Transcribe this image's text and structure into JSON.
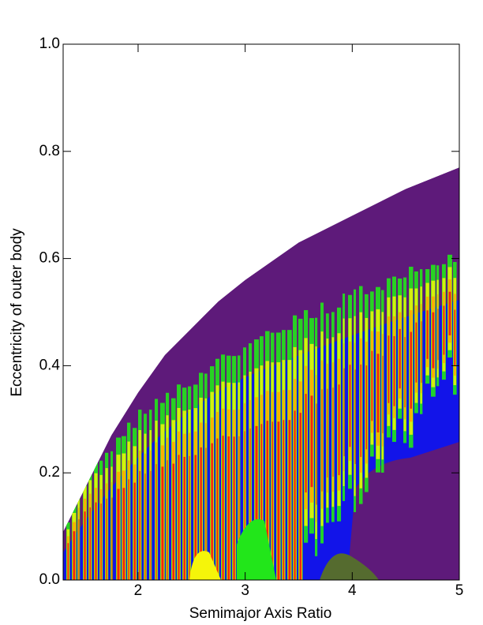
{
  "chart_data": {
    "type": "contour",
    "xlabel": "Semimajor Axis Ratio",
    "ylabel": "Eccentricity of outer body",
    "x": [
      1.3,
      1.5,
      1.75,
      2,
      2.25,
      2.5,
      2.75,
      3,
      3.5,
      4,
      4.5,
      5
    ],
    "values": [
      0.09,
      0.17,
      0.27,
      0.35,
      0.42,
      0.47,
      0.52,
      0.56,
      0.63,
      0.68,
      0.73,
      0.77
    ],
    "color": "#5e1a7a",
    "xlim": [
      1.3,
      5
    ],
    "ylim": [
      0,
      1
    ],
    "xticks": [
      2,
      3,
      4,
      5
    ],
    "yticks": [
      {
        "value": 0,
        "label": "0.0"
      },
      0.2,
      0.4,
      0.6,
      0.8,
      {
        "value": 1,
        "label": "1.0"
      }
    ]
  }
}
